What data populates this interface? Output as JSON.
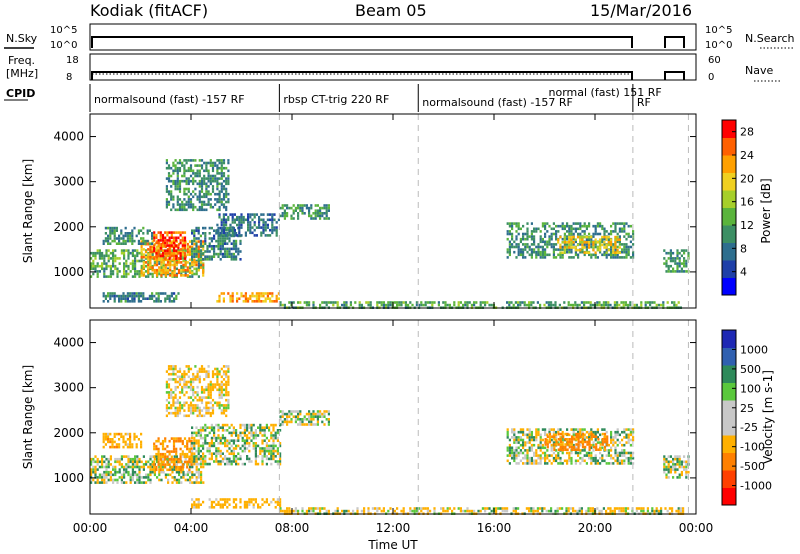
{
  "header": {
    "station": "Kodiak (fitACF)",
    "beam": "Beam 05",
    "date": "15/Mar/2016"
  },
  "top_panels": {
    "nsky_label": "N.Sky",
    "nsearch_label": "N.Search",
    "noise_ticks": [
      "10^5",
      "10^0"
    ],
    "freq_label": "Freq.",
    "freq_unit": "[MHz]",
    "freq_ticks": [
      "18",
      "8"
    ],
    "nave_label": "Nave",
    "nave_ticks": [
      "60",
      "0"
    ],
    "cpid_label": "CPID"
  },
  "cpid_segments": [
    {
      "label": "normalsound (fast) -157 RF",
      "start": 0.0,
      "end": 7.5
    },
    {
      "label": "rbsp CT-trig 220 RF",
      "start": 7.5,
      "end": 13.0
    },
    {
      "label": "normalsound (fast) -157 RF",
      "start": 13.0,
      "end": 21.5
    },
    {
      "label": "normal (fast) 151 RF",
      "start": 18.0,
      "end": 21.5
    },
    {
      "label": "RF",
      "start": 21.5,
      "end": 24.0
    }
  ],
  "colors": {
    "power_scale": [
      "#0000ff",
      "#1e3fa8",
      "#2e6e8e",
      "#3c8f64",
      "#5ab43c",
      "#a6cf2a",
      "#f0d020",
      "#ffa000",
      "#ff6000",
      "#ff0000"
    ],
    "velocity_scale": [
      "#1e28b4",
      "#3060b0",
      "#2e8a5a",
      "#5ac83c",
      "#c8c8c8",
      "#c8c8c8",
      "#ffb000",
      "#ff8000",
      "#ff4000",
      "#ff0000"
    ],
    "boundary_lines": "#bbbbbb"
  },
  "chart_data": [
    {
      "type": "heatmap",
      "name": "power",
      "ylabel": "Slant Range [km]",
      "xlabel": "Time UT",
      "xlim": [
        0,
        24
      ],
      "ylim": [
        200,
        4500
      ],
      "x_ticks": [
        "00:00",
        "04:00",
        "08:00",
        "12:00",
        "16:00",
        "20:00",
        "00:00"
      ],
      "y_ticks": [
        1000,
        2000,
        3000,
        4000
      ],
      "colorbar_label": "Power [dB]",
      "colorbar_ticks": [
        4,
        8,
        12,
        16,
        20,
        24,
        28
      ],
      "colorbar_range": [
        0,
        30
      ],
      "regions": [
        {
          "t0": 0.0,
          "t1": 4.5,
          "r0": 900,
          "r1": 1500,
          "value": 12
        },
        {
          "t0": 2.0,
          "t1": 4.5,
          "r0": 900,
          "r1": 1700,
          "value": 22
        },
        {
          "t0": 2.5,
          "t1": 3.8,
          "r0": 1300,
          "r1": 1900,
          "value": 26
        },
        {
          "t0": 0.5,
          "t1": 2.5,
          "r0": 1600,
          "r1": 2000,
          "value": 10
        },
        {
          "t0": 4.0,
          "t1": 6.0,
          "r0": 1300,
          "r1": 2000,
          "value": 9
        },
        {
          "t0": 5.0,
          "t1": 7.5,
          "r0": 1800,
          "r1": 2300,
          "value": 8
        },
        {
          "t0": 7.5,
          "t1": 9.5,
          "r0": 2200,
          "r1": 2500,
          "value": 11
        },
        {
          "t0": 3.0,
          "t1": 5.5,
          "r0": 2400,
          "r1": 3500,
          "value": 10
        },
        {
          "t0": 5.0,
          "t1": 7.5,
          "r0": 350,
          "r1": 550,
          "value": 22
        },
        {
          "t0": 0.5,
          "t1": 3.5,
          "r0": 350,
          "r1": 550,
          "value": 9
        },
        {
          "t0": 7.5,
          "t1": 23.5,
          "r0": 200,
          "r1": 350,
          "value": 12
        },
        {
          "t0": 16.5,
          "t1": 21.5,
          "r0": 1300,
          "r1": 2100,
          "value": 10
        },
        {
          "t0": 18.5,
          "t1": 21.0,
          "r0": 1400,
          "r1": 1800,
          "value": 20
        },
        {
          "t0": 22.7,
          "t1": 23.7,
          "r0": 1000,
          "r1": 1500,
          "value": 11
        }
      ]
    },
    {
      "type": "heatmap",
      "name": "velocity",
      "ylabel": "Slant Range [km]",
      "xlabel": "Time UT",
      "xlim": [
        0,
        24
      ],
      "ylim": [
        200,
        4500
      ],
      "x_ticks": [
        "00:00",
        "04:00",
        "08:00",
        "12:00",
        "16:00",
        "20:00",
        "00:00"
      ],
      "y_ticks": [
        1000,
        2000,
        3000,
        4000
      ],
      "colorbar_label": "Velocity [m s-1]",
      "colorbar_ticks": [
        1000,
        500,
        100,
        25,
        -25,
        -100,
        -500,
        -1000
      ],
      "regions": [
        {
          "t0": 0.0,
          "t1": 4.5,
          "r0": 900,
          "r1": 1500,
          "value": 0
        },
        {
          "t0": 2.5,
          "t1": 4.0,
          "r0": 1200,
          "r1": 1900,
          "value": -300
        },
        {
          "t0": 0.5,
          "t1": 2.0,
          "r0": 1700,
          "r1": 2000,
          "value": -200
        },
        {
          "t0": 4.0,
          "t1": 7.5,
          "r0": 1300,
          "r1": 2200,
          "value": 0
        },
        {
          "t0": 7.5,
          "t1": 9.5,
          "r0": 2200,
          "r1": 2500,
          "value": 0
        },
        {
          "t0": 3.0,
          "t1": 5.5,
          "r0": 2400,
          "r1": 3500,
          "value": -100
        },
        {
          "t0": 4.0,
          "t1": 7.5,
          "r0": 350,
          "r1": 550,
          "value": -150
        },
        {
          "t0": 7.5,
          "t1": 23.5,
          "r0": 200,
          "r1": 350,
          "value": -60
        },
        {
          "t0": 16.5,
          "t1": 21.5,
          "r0": 1300,
          "r1": 2100,
          "value": 0
        },
        {
          "t0": 18.0,
          "t1": 20.5,
          "r0": 1600,
          "r1": 2000,
          "value": -400
        },
        {
          "t0": 22.7,
          "t1": 23.7,
          "r0": 1000,
          "r1": 1500,
          "value": 0
        }
      ]
    }
  ],
  "footer": {
    "time_label": "Time UT"
  }
}
